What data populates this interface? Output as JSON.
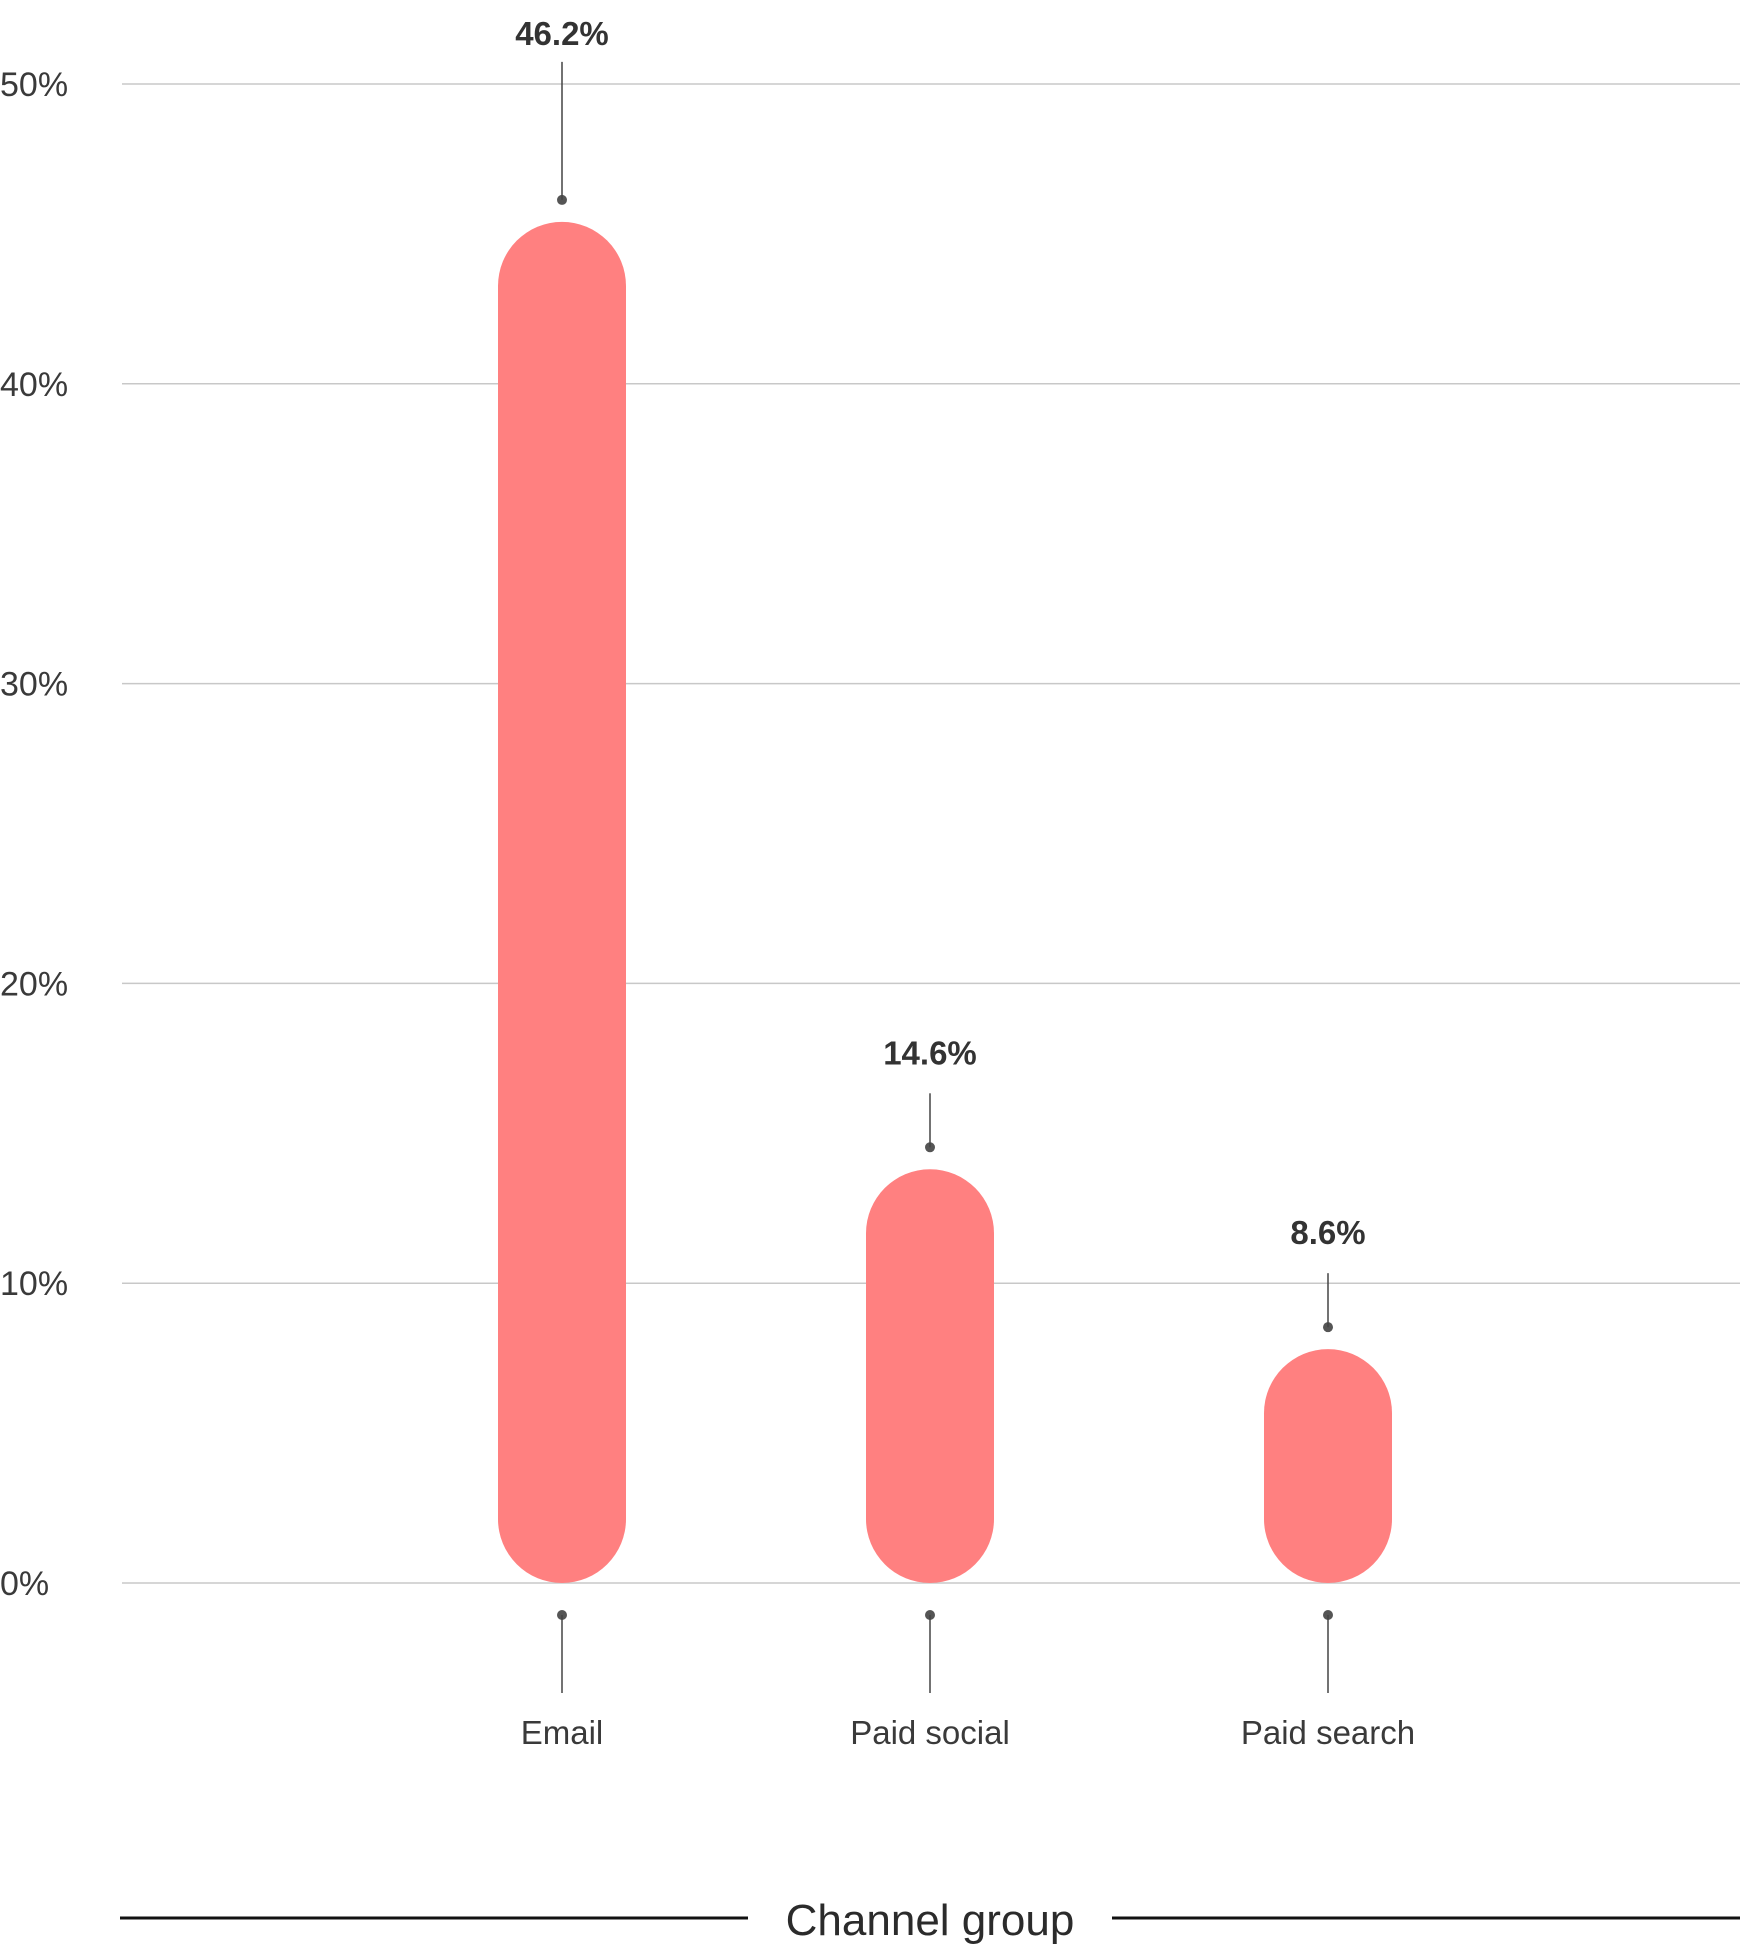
{
  "chart_data": {
    "type": "bar",
    "categories": [
      "Email",
      "Paid social",
      "Paid search"
    ],
    "values": [
      46.2,
      14.6,
      8.6
    ],
    "value_labels": [
      "46.2%",
      "14.6%",
      "8.6%"
    ],
    "xlabel": "Channel group",
    "ylabel": "",
    "ylim": [
      0,
      50
    ],
    "yticks": [
      0,
      10,
      20,
      30,
      40,
      50
    ],
    "ytick_labels": [
      "0%",
      "10%",
      "20%",
      "30%",
      "40%",
      "50%"
    ],
    "grid": true,
    "bar_color": "#ff8080"
  }
}
